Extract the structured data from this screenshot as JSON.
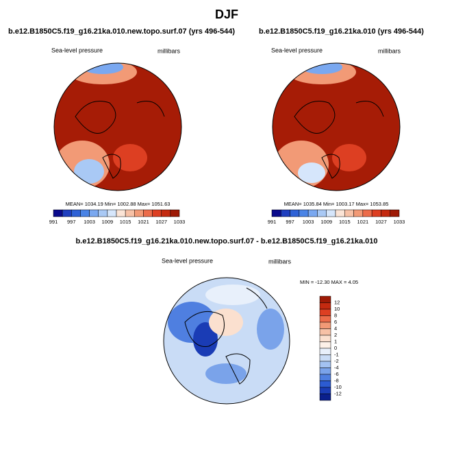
{
  "title": "DJF",
  "panels": [
    {
      "title": "b.e12.B1850C5.f19_g16.21ka.010.new.topo.surf.07 (yrs 496-544)",
      "variable": "Sea-level pressure",
      "units": "millibars",
      "stats": "MEAN= 1034.19  Min= 1002.88  Max= 1051.63"
    },
    {
      "title": "b.e12.B1850C5.f19_g16.21ka.010 (yrs 496-544)",
      "variable": "Sea-level pressure",
      "units": "millibars",
      "stats": "MEAN= 1035.84  Min= 1003.17  Max= 1053.85"
    }
  ],
  "colorbar": {
    "labels": [
      991,
      997,
      1003,
      1009,
      1015,
      1021,
      1027,
      1033
    ],
    "colors": [
      "#0a0a8c",
      "#1f3fbf",
      "#2f62d6",
      "#4a84e6",
      "#7aa8f0",
      "#a9c9f5",
      "#d6e6fb",
      "#fbe4d6",
      "#f7c1a6",
      "#f29a76",
      "#ec6c4a",
      "#dd3f22",
      "#c42a10",
      "#9e1a06"
    ]
  },
  "difference": {
    "title": "b.e12.B1850C5.f19_g16.21ka.010.new.topo.surf.07 - b.e12.B1850C5.f19_g16.21ka.010",
    "variable": "Sea-level pressure",
    "units": "millibars",
    "stats": "MIN = -12.30  MAX =   4.05",
    "colorbar": {
      "labels": [
        12,
        10,
        8,
        6,
        4,
        2,
        1,
        0,
        -1,
        -2,
        -4,
        -6,
        -8,
        -10,
        -12
      ],
      "colors": [
        "#9e1a06",
        "#c42a10",
        "#dd3f22",
        "#ec6c4a",
        "#f29a76",
        "#f7c1a6",
        "#fbe0cf",
        "#fdf1e8",
        "#e8f0fb",
        "#c9dcf6",
        "#a3c2f2",
        "#7aa3ea",
        "#4f7fe0",
        "#2c5bd1",
        "#1a3cb5",
        "#0a1f8c"
      ]
    }
  }
}
